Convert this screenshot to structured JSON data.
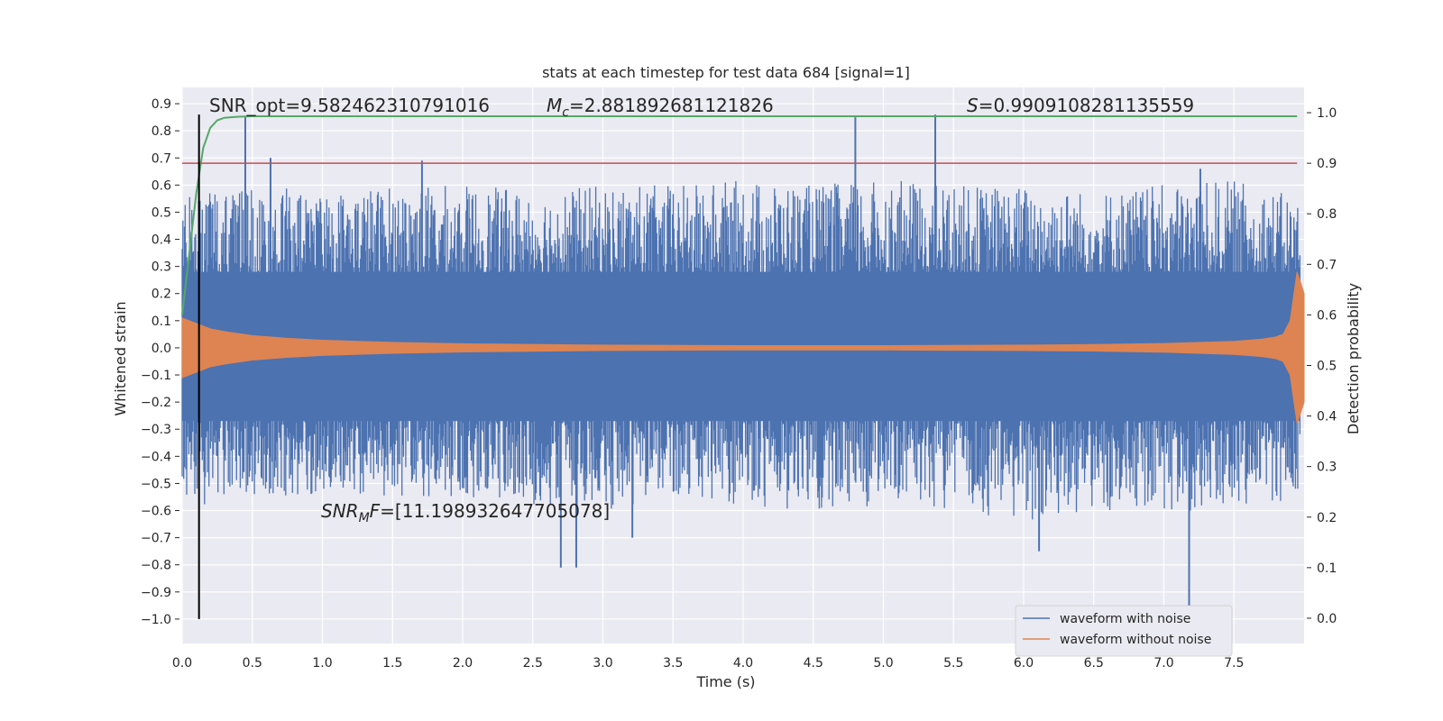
{
  "chart_data": {
    "type": "line",
    "title": "stats at each timestep for test data 684 [signal=1]",
    "xlabel": "Time (s)",
    "ylabel": "Whitened strain",
    "y2label": "Detection probability",
    "xlim": [
      0.0,
      8.0
    ],
    "ylim": [
      -1.09,
      0.96
    ],
    "y2lim": [
      -0.05,
      1.05
    ],
    "x_ticks": [
      "0.0",
      "0.5",
      "1.0",
      "1.5",
      "2.0",
      "2.5",
      "3.0",
      "3.5",
      "4.0",
      "4.5",
      "5.0",
      "5.5",
      "6.0",
      "6.5",
      "7.0",
      "7.5"
    ],
    "x_tick_values": [
      0.0,
      0.5,
      1.0,
      1.5,
      2.0,
      2.5,
      3.0,
      3.5,
      4.0,
      4.5,
      5.0,
      5.5,
      6.0,
      6.5,
      7.0,
      7.5
    ],
    "y_ticks": [
      "0.9",
      "0.8",
      "0.7",
      "0.6",
      "0.5",
      "0.4",
      "0.3",
      "0.2",
      "0.1",
      "0.0",
      "−0.1",
      "−0.2",
      "−0.3",
      "−0.4",
      "−0.5",
      "−0.6",
      "−0.7",
      "−0.8",
      "−0.9",
      "−1.0"
    ],
    "y_tick_values": [
      0.9,
      0.8,
      0.7,
      0.6,
      0.5,
      0.4,
      0.3,
      0.2,
      0.1,
      0.0,
      -0.1,
      -0.2,
      -0.3,
      -0.4,
      -0.5,
      -0.6,
      -0.7,
      -0.8,
      -0.9,
      -1.0
    ],
    "y2_ticks": [
      "1.0",
      "0.9",
      "0.8",
      "0.7",
      "0.6",
      "0.5",
      "0.4",
      "0.3",
      "0.2",
      "0.1",
      "0.0"
    ],
    "y2_tick_values": [
      1.0,
      0.9,
      0.8,
      0.7,
      0.6,
      0.5,
      0.4,
      0.3,
      0.2,
      0.1,
      0.0
    ],
    "grid": true,
    "legend_position": "lower right",
    "legend": [
      "waveform with noise",
      "waveform without noise"
    ],
    "annotations": {
      "snr_opt": "SNR_opt=9.582462310791016",
      "mc_symbol": "M",
      "mc_sub": "c",
      "mc_value": "=2.881892681121826",
      "s_symbol": "S",
      "s_value": "=0.9909108281135559",
      "snr_mf_symbol": "SNR",
      "snr_mf_sub": "M",
      "snr_mf_tail": "F",
      "snr_mf_value": "=[11.198932647705078]"
    },
    "series": [
      {
        "name": "waveform with noise",
        "color": "#4c72b0",
        "axis": "left",
        "envelope_x": [
          0.0,
          0.5,
          1.0,
          1.5,
          2.0,
          2.5,
          3.0,
          3.5,
          4.0,
          4.5,
          5.0,
          5.5,
          6.0,
          6.5,
          7.0,
          7.5,
          8.0
        ],
        "envelope_upper": [
          0.55,
          0.6,
          0.58,
          0.6,
          0.6,
          0.58,
          0.6,
          0.6,
          0.62,
          0.6,
          0.62,
          0.6,
          0.6,
          0.58,
          0.6,
          0.62,
          0.55
        ],
        "envelope_lower": [
          -0.6,
          -0.55,
          -0.55,
          -0.55,
          -0.55,
          -0.58,
          -0.6,
          -0.55,
          -0.58,
          -0.6,
          -0.58,
          -0.6,
          -0.65,
          -0.6,
          -0.6,
          -0.6,
          -0.55
        ],
        "spikes_x": [
          0.45,
          0.63,
          1.71,
          2.7,
          2.81,
          3.21,
          4.8,
          5.37,
          6.11,
          7.18,
          7.26
        ],
        "spikes_y": [
          0.85,
          0.7,
          0.69,
          -0.81,
          -0.81,
          -0.7,
          0.85,
          0.86,
          -0.75,
          -1.09,
          0.66
        ]
      },
      {
        "name": "waveform without noise",
        "color": "#dd8452",
        "axis": "left",
        "x": [
          0.0,
          0.1,
          0.2,
          0.3,
          0.5,
          0.75,
          1.0,
          1.5,
          2.0,
          3.0,
          4.0,
          5.0,
          6.0,
          6.5,
          7.0,
          7.5,
          7.7,
          7.8,
          7.85,
          7.9,
          7.95,
          8.0
        ],
        "upper": [
          0.11,
          0.09,
          0.07,
          0.06,
          0.045,
          0.035,
          0.028,
          0.02,
          0.015,
          0.01,
          0.008,
          0.008,
          0.01,
          0.012,
          0.016,
          0.024,
          0.032,
          0.04,
          0.05,
          0.1,
          0.28,
          0.2
        ],
        "lower": [
          -0.11,
          -0.09,
          -0.07,
          -0.06,
          -0.045,
          -0.035,
          -0.028,
          -0.02,
          -0.015,
          -0.01,
          -0.008,
          -0.008,
          -0.01,
          -0.012,
          -0.016,
          -0.024,
          -0.032,
          -0.04,
          -0.05,
          -0.1,
          -0.28,
          -0.2
        ]
      },
      {
        "name": "detection probability",
        "color": "#55a868",
        "axis": "right",
        "x": [
          0.0,
          0.05,
          0.1,
          0.15,
          0.2,
          0.25,
          0.3,
          0.4,
          0.5,
          0.75,
          1.0,
          2.0,
          4.0,
          6.0,
          7.95
        ],
        "y": [
          0.6,
          0.72,
          0.84,
          0.93,
          0.97,
          0.985,
          0.99,
          0.992,
          0.993,
          0.993,
          0.993,
          0.993,
          0.993,
          0.993,
          0.993
        ]
      }
    ],
    "threshold_line": {
      "axis": "right",
      "y": 0.9,
      "color": "#c44e52"
    },
    "vertical_marker": {
      "x": 0.12,
      "y_from": -1.0,
      "y_to": 0.86,
      "color": "#000000"
    }
  }
}
